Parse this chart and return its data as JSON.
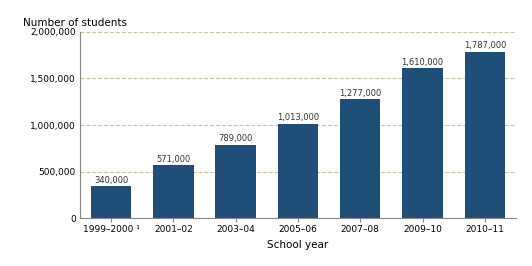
{
  "categories": [
    "1999–2000 ¹",
    "2001–02",
    "2003–04",
    "2005–06",
    "2007–08",
    "2009–10",
    "2010–11"
  ],
  "values": [
    340000,
    571000,
    789000,
    1013000,
    1277000,
    1610000,
    1787000
  ],
  "bar_color": "#1f4e79",
  "xlabel": "School year",
  "ylabel": "Number of students",
  "ylim": [
    0,
    2000000
  ],
  "yticks": [
    0,
    500000,
    1000000,
    1500000,
    2000000
  ],
  "ytick_labels": [
    "0",
    "500,000",
    "1,000,000",
    "1,500,000",
    "2,000,000"
  ],
  "grid_color": "#c8c8a0",
  "background_color": "#ffffff",
  "tick_label_fontsize": 6.5,
  "xlabel_fontsize": 7.5,
  "ylabel_fontsize": 7.5,
  "bar_label_fontsize": 6.0,
  "bar_width": 0.65
}
